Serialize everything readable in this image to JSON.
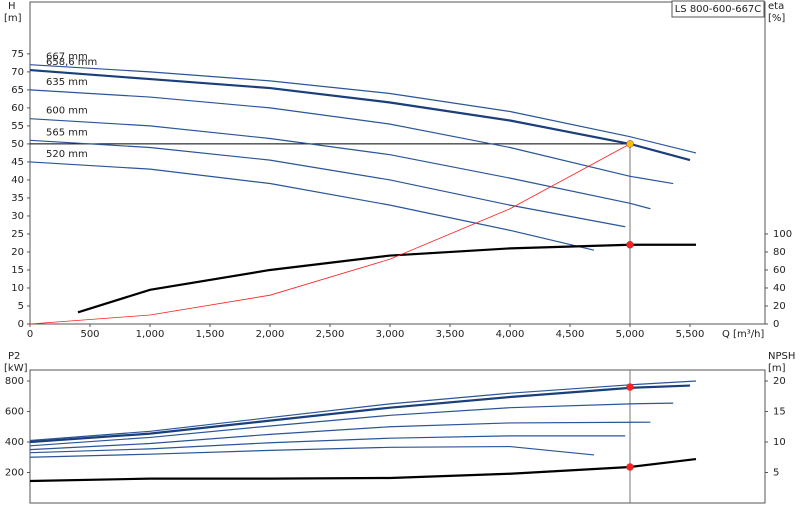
{
  "chart_data": [
    {
      "type": "line",
      "label_box": "LS 800-600-667C",
      "y_label": "H",
      "y_unit": "[m]",
      "y2_label": "eta",
      "y2_unit": "[%]",
      "x_label": "Q [m³/h]",
      "xlim": [
        0,
        6125
      ],
      "ylim": [
        0,
        89.4
      ],
      "y2lim": [
        0,
        357.6
      ],
      "xticks": [
        0,
        500,
        {
          "value": 1000,
          "label": "1,000"
        },
        {
          "value": 1500,
          "label": "1,500"
        },
        {
          "value": 2000,
          "label": "2,000"
        },
        {
          "value": 2500,
          "label": "2,500"
        },
        {
          "value": 3000,
          "label": "3,000"
        },
        {
          "value": 3500,
          "label": "3,500"
        },
        {
          "value": 4000,
          "label": "4,000"
        },
        {
          "value": 4500,
          "label": "4,500"
        },
        {
          "value": 5000,
          "label": "5,000"
        },
        {
          "value": 5500,
          "label": "5,500"
        }
      ],
      "yticks": [
        0,
        5,
        10,
        15,
        20,
        25,
        30,
        35,
        40,
        45,
        50,
        55,
        60,
        65,
        70,
        75
      ],
      "y2ticks": [
        0,
        20,
        40,
        60,
        80,
        100
      ],
      "series": [
        {
          "name": "667 mm",
          "color": "#2a5597",
          "line_width": 1.2,
          "x": [
            0,
            1000,
            2000,
            3000,
            4000,
            5000,
            5550
          ],
          "values": [
            72,
            70,
            67.5,
            64,
            59,
            52,
            47.5
          ]
        },
        {
          "name": "658,6 mm",
          "color": "#1a3f7a",
          "line_width": 2.2,
          "x": [
            0,
            1000,
            2000,
            3000,
            4000,
            5000,
            5500
          ],
          "values": [
            70.5,
            68,
            65.5,
            61.5,
            56.5,
            50,
            45.5
          ]
        },
        {
          "name": "635 mm",
          "color": "#2a5597",
          "line_width": 1.2,
          "x": [
            0,
            1000,
            2000,
            3000,
            4000,
            5000,
            5360
          ],
          "values": [
            65,
            63,
            60,
            55.5,
            49,
            41,
            39
          ]
        },
        {
          "name": "600 mm",
          "color": "#2a5597",
          "line_width": 1.2,
          "x": [
            0,
            1000,
            2000,
            3000,
            4000,
            5000,
            5170
          ],
          "values": [
            57,
            55,
            51.5,
            47,
            40.5,
            33.5,
            32
          ]
        },
        {
          "name": "565 mm",
          "color": "#2a5597",
          "line_width": 1.2,
          "x": [
            0,
            1000,
            2000,
            3000,
            4000,
            4960
          ],
          "values": [
            51,
            49,
            45.5,
            40,
            33,
            27
          ]
        },
        {
          "name": "520 mm",
          "color": "#2a5597",
          "line_width": 1.2,
          "x": [
            0,
            1000,
            2000,
            3000,
            4000,
            4700
          ],
          "values": [
            45,
            43,
            39,
            33,
            26,
            20.5
          ]
        },
        {
          "color": "#000000",
          "line_width": 2.2,
          "axis": "y2",
          "x": [
            400,
            1000,
            2000,
            3000,
            4000,
            5000,
            5550
          ],
          "values": [
            13,
            38,
            60,
            76,
            84,
            88,
            88
          ]
        },
        {
          "color": "#ff2020",
          "line_width": 0.8,
          "x": [
            0,
            1000,
            2000,
            3000,
            4000,
            5000
          ],
          "values": [
            0,
            2.5,
            8,
            18,
            32,
            50
          ]
        }
      ],
      "reference_lines": {
        "x": 5000,
        "y": 50
      },
      "points": [
        {
          "x": 5000,
          "y": 50,
          "color": "#f5c000"
        },
        {
          "x": 5000,
          "y": 88,
          "color": "#ff2020",
          "axis": "y2"
        }
      ]
    },
    {
      "type": "line",
      "y_label": "P2",
      "y_unit": "[kW]",
      "y2_label": "NPSH",
      "y2_unit": "[m]",
      "xlim": [
        0,
        6125
      ],
      "ylim": [
        0,
        872
      ],
      "y2lim": [
        0,
        21.8
      ],
      "yticks": [
        200,
        400,
        600,
        800
      ],
      "y2ticks": [
        5,
        10,
        15,
        20
      ],
      "series": [
        {
          "color": "#2a5597",
          "line_width": 1.2,
          "x": [
            0,
            1000,
            2000,
            3000,
            4000,
            5000,
            5550
          ],
          "values": [
            410,
            470,
            560,
            650,
            720,
            775,
            800
          ]
        },
        {
          "color": "#1a3f7a",
          "line_width": 2.2,
          "x": [
            0,
            1000,
            2000,
            3000,
            4000,
            5000,
            5500
          ],
          "values": [
            400,
            455,
            540,
            625,
            695,
            755,
            770
          ]
        },
        {
          "color": "#2a5597",
          "line_width": 1.2,
          "x": [
            0,
            1000,
            2000,
            3000,
            4000,
            5000,
            5360
          ],
          "values": [
            375,
            430,
            505,
            575,
            625,
            650,
            655
          ]
        },
        {
          "color": "#2a5597",
          "line_width": 1.2,
          "x": [
            0,
            1000,
            2000,
            3000,
            4000,
            5170
          ],
          "values": [
            350,
            390,
            450,
            500,
            525,
            530
          ]
        },
        {
          "color": "#2a5597",
          "line_width": 1.2,
          "x": [
            0,
            1000,
            2000,
            3000,
            4000,
            4960
          ],
          "values": [
            330,
            355,
            395,
            425,
            440,
            440
          ]
        },
        {
          "color": "#2a5597",
          "line_width": 1.2,
          "x": [
            0,
            1000,
            2000,
            3000,
            4000,
            4700
          ],
          "values": [
            300,
            320,
            345,
            365,
            370,
            315
          ]
        },
        {
          "color": "#000000",
          "line_width": 2.2,
          "axis": "y2",
          "x": [
            0,
            1000,
            2000,
            3000,
            4000,
            5000,
            5550
          ],
          "values": [
            3.6,
            4.0,
            4.0,
            4.1,
            4.8,
            5.9,
            7.2
          ]
        }
      ],
      "reference_lines": {
        "x": 5000
      },
      "points": [
        {
          "x": 5000,
          "y": 760,
          "color": "#ff2020"
        },
        {
          "x": 5000,
          "y": 5.9,
          "color": "#ff2020",
          "axis": "y2"
        }
      ]
    }
  ]
}
